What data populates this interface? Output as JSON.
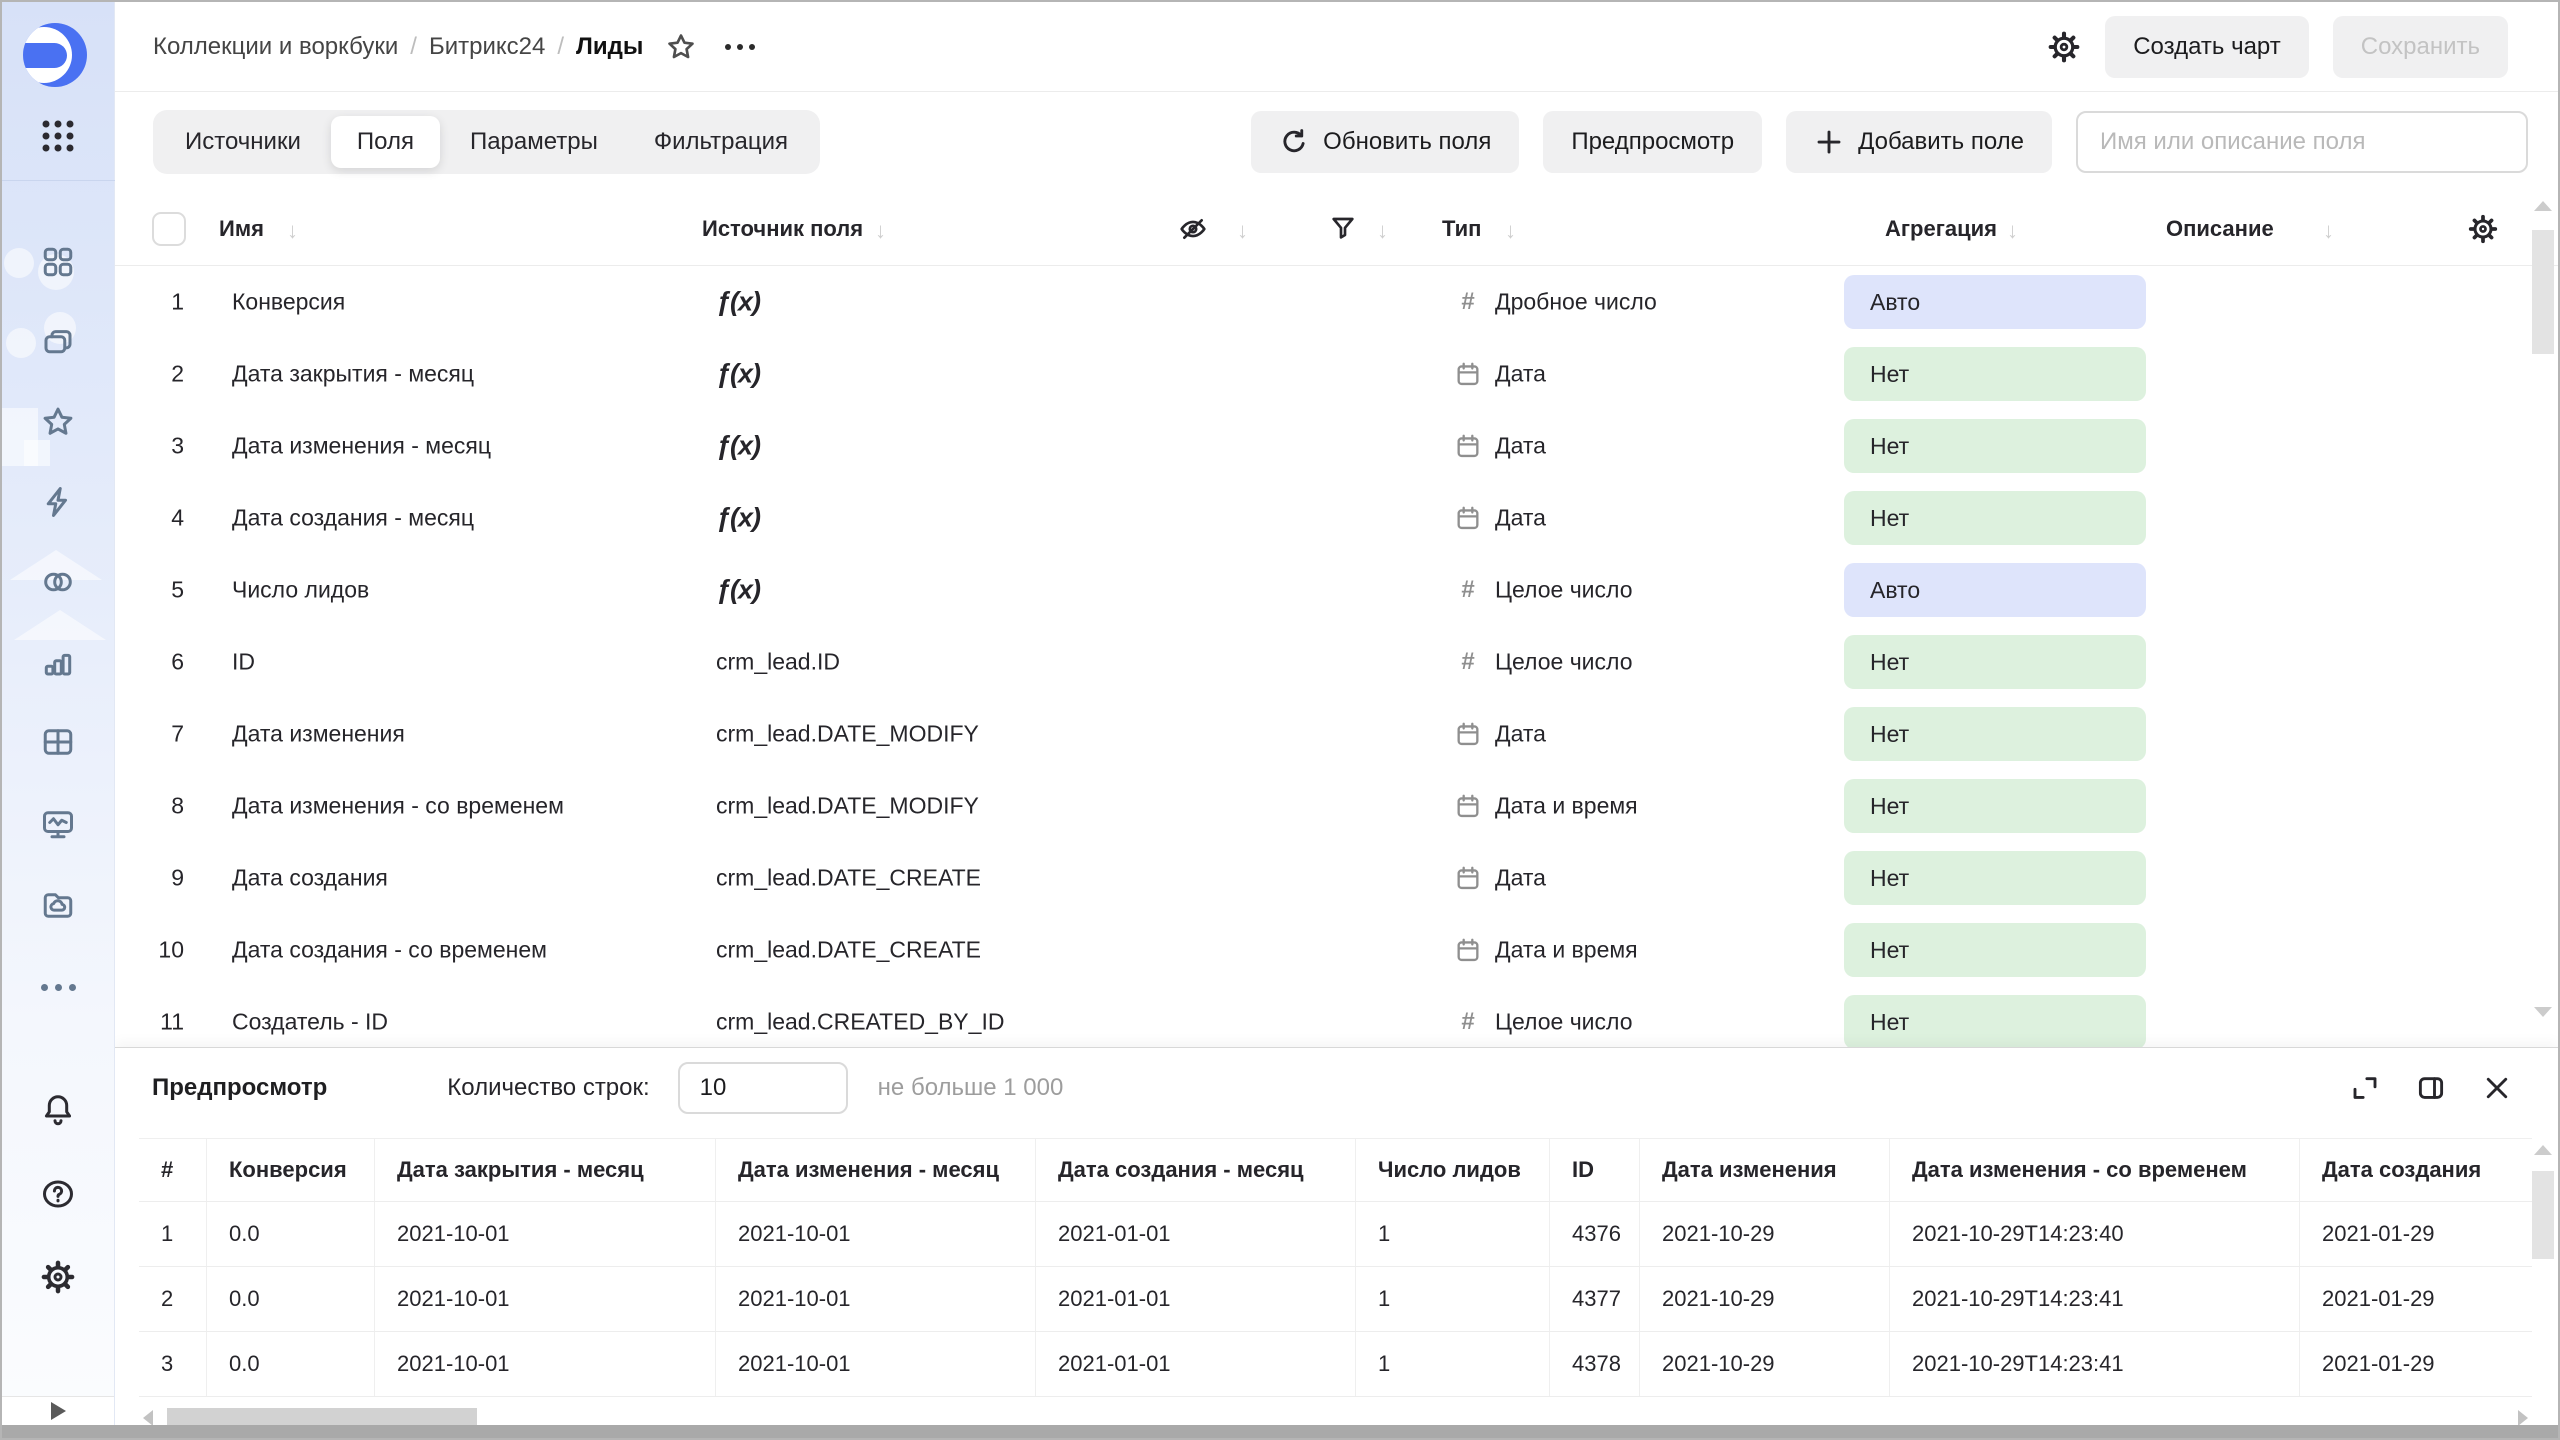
{
  "topbar": {
    "breadcrumbs": [
      "Коллекции и воркбуки",
      "Битрикс24"
    ],
    "current": "Лиды",
    "actions": {
      "create_chart": "Создать чарт",
      "save": "Сохранить"
    }
  },
  "toolbar": {
    "tabs": [
      {
        "label": "Источники",
        "active": false
      },
      {
        "label": "Поля",
        "active": true
      },
      {
        "label": "Параметры",
        "active": false
      },
      {
        "label": "Фильтрация",
        "active": false
      }
    ],
    "refresh_fields": "Обновить поля",
    "preview": "Предпросмотр",
    "add_field": "Добавить поле",
    "search_placeholder": "Имя или описание поля"
  },
  "fields_table": {
    "headers": {
      "name": "Имя",
      "source": "Источник поля",
      "type": "Тип",
      "aggregation": "Агрегация",
      "description": "Описание"
    },
    "formula_glyph": "ƒ(x)",
    "number_glyph": "#",
    "rows": [
      {
        "n": "1",
        "name": "Конверсия",
        "source": "formula",
        "type": "Дробное число",
        "type_kind": "number",
        "aggregation": "Авто",
        "agg_kind": "auto"
      },
      {
        "n": "2",
        "name": "Дата закрытия - месяц",
        "source": "formula",
        "type": "Дата",
        "type_kind": "date",
        "aggregation": "Нет",
        "agg_kind": "none"
      },
      {
        "n": "3",
        "name": "Дата изменения - месяц",
        "source": "formula",
        "type": "Дата",
        "type_kind": "date",
        "aggregation": "Нет",
        "agg_kind": "none"
      },
      {
        "n": "4",
        "name": "Дата создания - месяц",
        "source": "formula",
        "type": "Дата",
        "type_kind": "date",
        "aggregation": "Нет",
        "agg_kind": "none"
      },
      {
        "n": "5",
        "name": "Число лидов",
        "source": "formula",
        "type": "Целое число",
        "type_kind": "number",
        "aggregation": "Авто",
        "agg_kind": "auto"
      },
      {
        "n": "6",
        "name": "ID",
        "source": "crm_lead.ID",
        "type": "Целое число",
        "type_kind": "number",
        "aggregation": "Нет",
        "agg_kind": "none"
      },
      {
        "n": "7",
        "name": "Дата изменения",
        "source": "crm_lead.DATE_MODIFY",
        "type": "Дата",
        "type_kind": "date",
        "aggregation": "Нет",
        "agg_kind": "none"
      },
      {
        "n": "8",
        "name": "Дата изменения - со временем",
        "source": "crm_lead.DATE_MODIFY",
        "type": "Дата и время",
        "type_kind": "date",
        "aggregation": "Нет",
        "agg_kind": "none"
      },
      {
        "n": "9",
        "name": "Дата создания",
        "source": "crm_lead.DATE_CREATE",
        "type": "Дата",
        "type_kind": "date",
        "aggregation": "Нет",
        "agg_kind": "none"
      },
      {
        "n": "10",
        "name": "Дата создания - со временем",
        "source": "crm_lead.DATE_CREATE",
        "type": "Дата и время",
        "type_kind": "date",
        "aggregation": "Нет",
        "agg_kind": "none"
      },
      {
        "n": "11",
        "name": "Создатель - ID",
        "source": "crm_lead.CREATED_BY_ID",
        "type": "Целое число",
        "type_kind": "number",
        "aggregation": "Нет",
        "agg_kind": "none"
      }
    ]
  },
  "preview": {
    "title": "Предпросмотр",
    "row_count_label": "Количество строк:",
    "row_count_value": "10",
    "row_count_hint": "не больше 1 000",
    "columns": [
      "#",
      "Конверсия",
      "Дата закрытия - месяц",
      "Дата изменения - месяц",
      "Дата создания - месяц",
      "Число лидов",
      "ID",
      "Дата изменения",
      "Дата изменения - со временем",
      "Дата создания"
    ],
    "rows": [
      [
        "1",
        "0.0",
        "2021-10-01",
        "2021-10-01",
        "2021-01-01",
        "1",
        "4376",
        "2021-10-29",
        "2021-10-29T14:23:40",
        "2021-01-29"
      ],
      [
        "2",
        "0.0",
        "2021-10-01",
        "2021-10-01",
        "2021-01-01",
        "1",
        "4377",
        "2021-10-29",
        "2021-10-29T14:23:41",
        "2021-01-29"
      ],
      [
        "3",
        "0.0",
        "2021-10-01",
        "2021-10-01",
        "2021-01-01",
        "1",
        "4378",
        "2021-10-29",
        "2021-10-29T14:23:41",
        "2021-01-29"
      ]
    ]
  },
  "icons": {
    "logo": "datalens-logo",
    "sidebar": [
      "apps-grid-icon",
      "dashboard-icon",
      "collections-icon",
      "favorites-star-icon",
      "lightning-icon",
      "linked-circles-icon",
      "bar-chart-icon",
      "table-icon",
      "monitor-pulse-icon",
      "cloud-folder-icon",
      "more-dots-icon",
      "bell-icon",
      "help-icon",
      "settings-gear-icon",
      "expand-play-icon"
    ],
    "header": [
      "settings-gear-icon"
    ],
    "table_header": [
      "hidden-eye-icon",
      "filter-funnel-icon",
      "settings-gear-icon",
      "sort-arrow-icon"
    ],
    "preview_header": [
      "expand-icon",
      "split-panel-icon",
      "close-icon"
    ]
  },
  "colors": {
    "aggregation_auto_bg": "#dee4fb",
    "aggregation_none_bg": "#ddf1de",
    "sidebar_top": "#d7e1f8",
    "logo_blue": "#4a71f2",
    "button_bg": "#f0f0f1"
  }
}
